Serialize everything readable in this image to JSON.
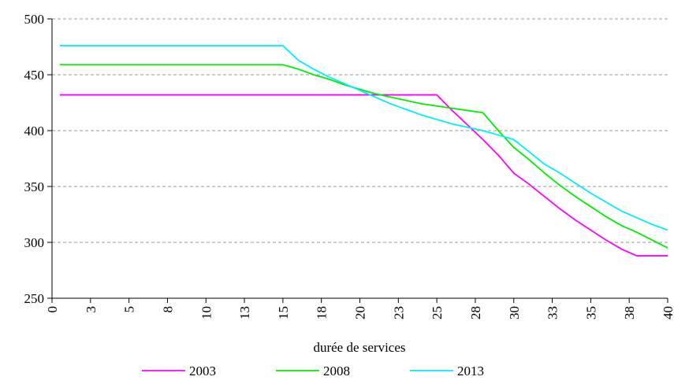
{
  "chart_data": {
    "type": "line",
    "x_label": "durée de services",
    "x": [
      0.5,
      15,
      16,
      17,
      18,
      19,
      20,
      21,
      22,
      23,
      24,
      25,
      26,
      27,
      28,
      29,
      30,
      31,
      32,
      33,
      34,
      35,
      36,
      37,
      38,
      39,
      40
    ],
    "series": [
      {
        "name": "2003",
        "color": "#ff00ff",
        "values": [
          432,
          432,
          432,
          432,
          432,
          432,
          432,
          432,
          432,
          432,
          432,
          432,
          418,
          405,
          392,
          378,
          362,
          352,
          341,
          330,
          320,
          311,
          302,
          294,
          288,
          288,
          288
        ]
      },
      {
        "name": "2008",
        "color": "#00ee00",
        "values": [
          459,
          459,
          455,
          450,
          446,
          441,
          437,
          433,
          430,
          427,
          424,
          422,
          420,
          418,
          416,
          400,
          385,
          374,
          362,
          351,
          341,
          332,
          323,
          315,
          309,
          302,
          295
        ]
      },
      {
        "name": "2013",
        "color": "#00eeff",
        "values": [
          476,
          476,
          463,
          455,
          448,
          442,
          436,
          430,
          424,
          419,
          414,
          410,
          406,
          403,
          400,
          396,
          392,
          381,
          370,
          362,
          353,
          344,
          336,
          328,
          322,
          316,
          311
        ]
      }
    ],
    "xlim": [
      0,
      40
    ],
    "xticks": [
      0,
      {
        "value": 2.5,
        "label": "3"
      },
      5,
      {
        "value": 7.5,
        "label": "8"
      },
      10,
      {
        "value": 12.5,
        "label": "13"
      },
      15,
      {
        "value": 17.5,
        "label": "18"
      },
      20,
      {
        "value": 22.5,
        "label": "23"
      },
      25,
      {
        "value": 27.5,
        "label": "28"
      },
      30,
      {
        "value": 32.5,
        "label": "33"
      },
      35,
      {
        "value": 37.5,
        "label": "38"
      },
      40
    ],
    "ylim": [
      250,
      500
    ],
    "yticks": [
      250,
      300,
      350,
      400,
      450,
      500
    ],
    "grid": true,
    "legend": "bottom"
  }
}
